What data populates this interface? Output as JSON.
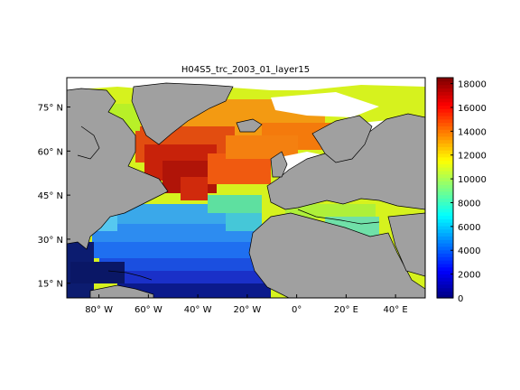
{
  "title": "H04S5_trc_2003_01_layer15",
  "map": {
    "projection": "lat-lon",
    "lon_range": [
      -93,
      52
    ],
    "lat_range": [
      10,
      85
    ],
    "lon_ticks": [
      {
        "value": -80,
        "label": "80° W"
      },
      {
        "value": -60,
        "label": "60° W"
      },
      {
        "value": -40,
        "label": "40° W"
      },
      {
        "value": -20,
        "label": "20° W"
      },
      {
        "value": 0,
        "label": "0°"
      },
      {
        "value": 20,
        "label": "20° E"
      },
      {
        "value": 40,
        "label": "40° E"
      }
    ],
    "lat_ticks": [
      {
        "value": 15,
        "label": "15° N"
      },
      {
        "value": 30,
        "label": "30° N"
      },
      {
        "value": 45,
        "label": "45° N"
      },
      {
        "value": 60,
        "label": "60° N"
      },
      {
        "value": 75,
        "label": "75° N"
      }
    ],
    "colors": {
      "land": "#a0a0a0",
      "nodata": "#ffffff",
      "coast": "#000000"
    }
  },
  "colorbar": {
    "colormap": "jet",
    "range": [
      0,
      18500
    ],
    "ticks": [
      {
        "value": 0,
        "label": "0"
      },
      {
        "value": 2000,
        "label": "2000"
      },
      {
        "value": 4000,
        "label": "4000"
      },
      {
        "value": 6000,
        "label": "6000"
      },
      {
        "value": 8000,
        "label": "8000"
      },
      {
        "value": 10000,
        "label": "10000"
      },
      {
        "value": 12000,
        "label": "12000"
      },
      {
        "value": 14000,
        "label": "14000"
      },
      {
        "value": 16000,
        "label": "16000"
      },
      {
        "value": 18000,
        "label": "18000"
      }
    ]
  }
}
